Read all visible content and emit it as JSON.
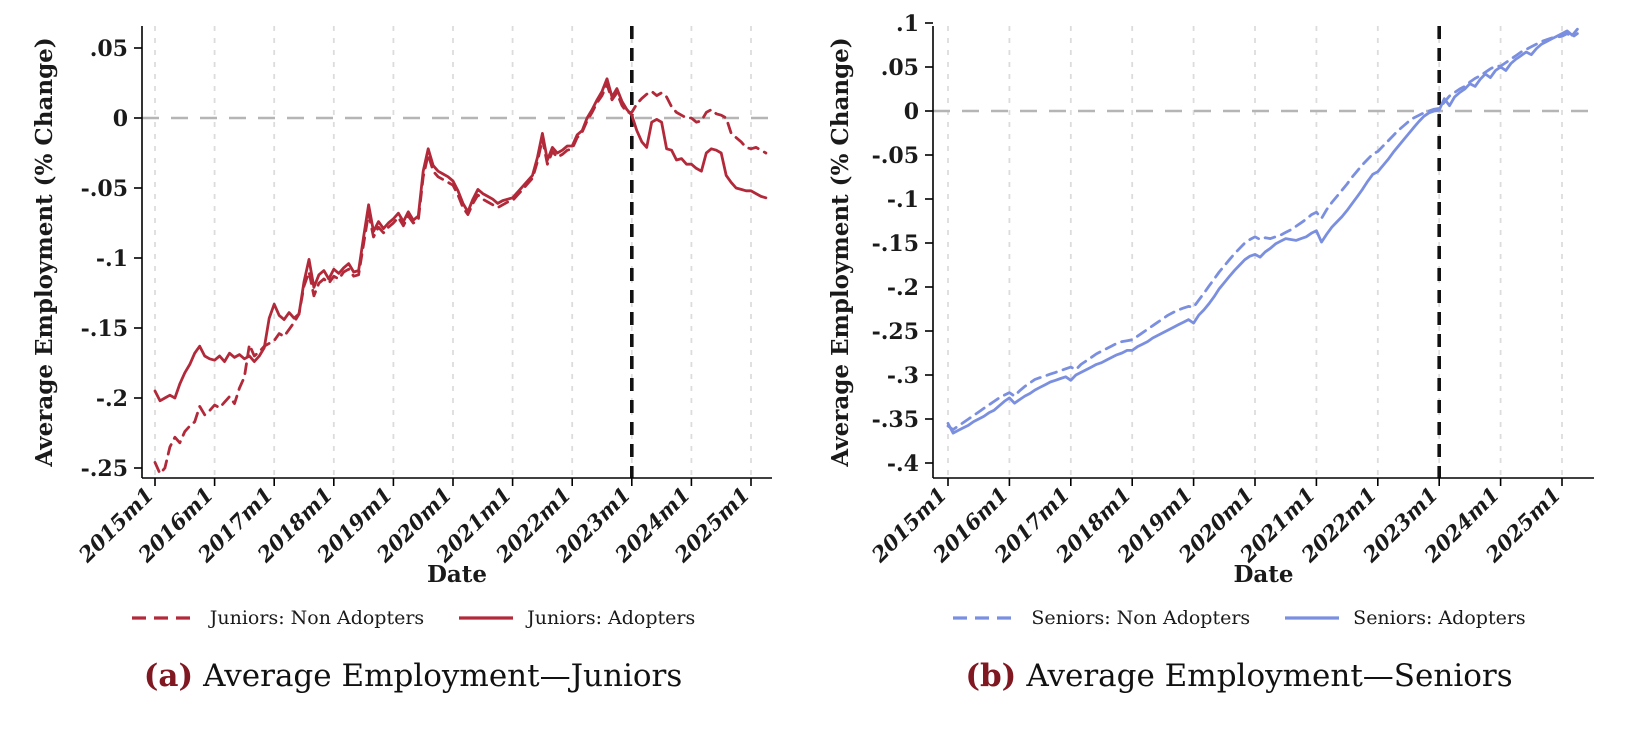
{
  "caption_label_color": "#801822",
  "captions": [
    {
      "label": "(a)",
      "text": "Average Employment—Juniors"
    },
    {
      "label": "(b)",
      "text": "Average Employment—Seniors"
    }
  ],
  "chart_data": [
    {
      "type": "line",
      "title": "",
      "xlabel": "Date",
      "ylabel": "Average Employment (% Change)",
      "accent": "#b2293a",
      "grid": "vertical-dashed",
      "zero_line": true,
      "event_line_x": "2023m1",
      "x_start": "2015m1",
      "freq": "monthly",
      "xtick_labels": [
        "2015m1",
        "2016m1",
        "2017m1",
        "2018m1",
        "2019m1",
        "2020m1",
        "2021m1",
        "2022m1",
        "2023m1",
        "2024m1",
        "2025m1"
      ],
      "ytick_values": [
        0.05,
        0,
        -0.05,
        -0.1,
        -0.15,
        -0.2,
        -0.25
      ],
      "ytick_labels": [
        ".05",
        "0",
        "-.05",
        "-.1",
        "-.15",
        "-.2",
        "-.25"
      ],
      "ylim": [
        -0.27,
        0.065
      ],
      "legend_position": "below",
      "series": [
        {
          "name": "Juniors: Non Adopters",
          "style": "dashed",
          "values": [
            -0.246,
            -0.254,
            -0.25,
            -0.235,
            -0.228,
            -0.232,
            -0.224,
            -0.22,
            -0.217,
            -0.206,
            -0.212,
            -0.209,
            -0.205,
            -0.207,
            -0.203,
            -0.199,
            -0.204,
            -0.193,
            -0.185,
            -0.162,
            -0.17,
            -0.167,
            -0.163,
            -0.161,
            -0.159,
            -0.154,
            -0.156,
            -0.151,
            -0.146,
            -0.14,
            -0.12,
            -0.11,
            -0.127,
            -0.118,
            -0.115,
            -0.118,
            -0.113,
            -0.115,
            -0.11,
            -0.108,
            -0.113,
            -0.112,
            -0.09,
            -0.068,
            -0.085,
            -0.078,
            -0.082,
            -0.078,
            -0.075,
            -0.071,
            -0.077,
            -0.07,
            -0.075,
            -0.073,
            -0.042,
            -0.026,
            -0.038,
            -0.042,
            -0.044,
            -0.046,
            -0.048,
            -0.055,
            -0.064,
            -0.069,
            -0.061,
            -0.055,
            -0.058,
            -0.06,
            -0.062,
            -0.064,
            -0.062,
            -0.06,
            -0.059,
            -0.055,
            -0.051,
            -0.047,
            -0.043,
            -0.031,
            -0.015,
            -0.033,
            -0.024,
            -0.028,
            -0.026,
            -0.023,
            -0.022,
            -0.014,
            -0.01,
            -0.002,
            0.004,
            0.011,
            0.016,
            0.024,
            0.013,
            0.018,
            0.009,
            0.004,
            0.004,
            0.01,
            0.014,
            0.017,
            0.019,
            0.016,
            0.018,
            0.015,
            0.008,
            0.004,
            0.002,
            0.0,
            0.0,
            -0.003,
            -0.002,
            0.004,
            0.006,
            0.003,
            0.002,
            0.0,
            -0.011,
            -0.014,
            -0.017,
            -0.021,
            -0.022,
            -0.021,
            -0.023,
            -0.025
          ]
        },
        {
          "name": "Juniors: Adopters",
          "style": "solid",
          "values": [
            -0.195,
            -0.202,
            -0.2,
            -0.198,
            -0.2,
            -0.19,
            -0.182,
            -0.176,
            -0.168,
            -0.163,
            -0.17,
            -0.172,
            -0.173,
            -0.17,
            -0.174,
            -0.168,
            -0.171,
            -0.169,
            -0.172,
            -0.17,
            -0.174,
            -0.17,
            -0.164,
            -0.143,
            -0.133,
            -0.141,
            -0.144,
            -0.139,
            -0.143,
            -0.14,
            -0.117,
            -0.101,
            -0.121,
            -0.112,
            -0.109,
            -0.115,
            -0.108,
            -0.111,
            -0.107,
            -0.104,
            -0.11,
            -0.109,
            -0.085,
            -0.062,
            -0.081,
            -0.074,
            -0.079,
            -0.075,
            -0.072,
            -0.068,
            -0.074,
            -0.067,
            -0.073,
            -0.07,
            -0.038,
            -0.022,
            -0.034,
            -0.038,
            -0.04,
            -0.042,
            -0.045,
            -0.052,
            -0.061,
            -0.067,
            -0.058,
            -0.051,
            -0.054,
            -0.056,
            -0.058,
            -0.061,
            -0.059,
            -0.058,
            -0.057,
            -0.053,
            -0.049,
            -0.045,
            -0.041,
            -0.028,
            -0.011,
            -0.03,
            -0.021,
            -0.025,
            -0.023,
            -0.02,
            -0.02,
            -0.012,
            -0.009,
            0.0,
            0.006,
            0.013,
            0.019,
            0.028,
            0.015,
            0.021,
            0.012,
            0.006,
            0.002,
            -0.009,
            -0.017,
            -0.021,
            -0.003,
            -0.001,
            -0.003,
            -0.022,
            -0.023,
            -0.03,
            -0.029,
            -0.033,
            -0.033,
            -0.036,
            -0.038,
            -0.025,
            -0.022,
            -0.023,
            -0.025,
            -0.041,
            -0.046,
            -0.05,
            -0.051,
            -0.052,
            -0.052,
            -0.054,
            -0.056,
            -0.057
          ]
        }
      ]
    },
    {
      "type": "line",
      "title": "",
      "xlabel": "Date",
      "ylabel": "Average Employment (% Change)",
      "accent": "#7b8fe0",
      "grid": "vertical-dashed",
      "zero_line": true,
      "event_line_x": "2023m1",
      "x_start": "2015m1",
      "freq": "monthly",
      "xtick_labels": [
        "2015m1",
        "2016m1",
        "2017m1",
        "2018m1",
        "2019m1",
        "2020m1",
        "2021m1",
        "2022m1",
        "2023m1",
        "2024m1",
        "2025m1"
      ],
      "ytick_values": [
        0.1,
        0.05,
        0,
        -0.05,
        -0.1,
        -0.15,
        -0.2,
        -0.25,
        -0.3,
        -0.35,
        -0.4
      ],
      "ytick_labels": [
        ".1",
        ".05",
        "0",
        "-.05",
        "-.1",
        "-.15",
        "-.2",
        "-.25",
        "-.3",
        "-.35",
        "-.4"
      ],
      "ylim": [
        -0.41,
        0.1
      ],
      "legend_position": "below",
      "series": [
        {
          "name": "Seniors: Non Adopters",
          "style": "dashed",
          "values": [
            -0.358,
            -0.362,
            -0.358,
            -0.354,
            -0.35,
            -0.346,
            -0.342,
            -0.338,
            -0.334,
            -0.33,
            -0.326,
            -0.323,
            -0.32,
            -0.324,
            -0.318,
            -0.313,
            -0.309,
            -0.305,
            -0.303,
            -0.301,
            -0.299,
            -0.297,
            -0.295,
            -0.293,
            -0.291,
            -0.294,
            -0.288,
            -0.284,
            -0.28,
            -0.276,
            -0.273,
            -0.27,
            -0.267,
            -0.264,
            -0.262,
            -0.261,
            -0.26,
            -0.256,
            -0.252,
            -0.248,
            -0.244,
            -0.24,
            -0.236,
            -0.232,
            -0.229,
            -0.226,
            -0.224,
            -0.222,
            -0.223,
            -0.215,
            -0.207,
            -0.199,
            -0.191,
            -0.183,
            -0.176,
            -0.169,
            -0.162,
            -0.156,
            -0.15,
            -0.146,
            -0.143,
            -0.146,
            -0.144,
            -0.145,
            -0.143,
            -0.141,
            -0.138,
            -0.135,
            -0.131,
            -0.127,
            -0.123,
            -0.118,
            -0.115,
            -0.122,
            -0.112,
            -0.104,
            -0.097,
            -0.09,
            -0.083,
            -0.075,
            -0.068,
            -0.061,
            -0.055,
            -0.049,
            -0.046,
            -0.04,
            -0.034,
            -0.028,
            -0.022,
            -0.017,
            -0.012,
            -0.008,
            -0.005,
            -0.002,
            0.0,
            0.002,
            0.003,
            0.01,
            0.017,
            0.021,
            0.025,
            0.028,
            0.033,
            0.037,
            0.04,
            0.044,
            0.048,
            0.051,
            0.051,
            0.055,
            0.059,
            0.063,
            0.067,
            0.07,
            0.073,
            0.076,
            0.079,
            0.081,
            0.083,
            0.084,
            0.085,
            0.088,
            0.084,
            0.088
          ]
        },
        {
          "name": "Seniors: Adopters",
          "style": "solid",
          "values": [
            -0.355,
            -0.366,
            -0.363,
            -0.36,
            -0.357,
            -0.353,
            -0.35,
            -0.347,
            -0.343,
            -0.34,
            -0.335,
            -0.33,
            -0.326,
            -0.332,
            -0.328,
            -0.324,
            -0.321,
            -0.317,
            -0.314,
            -0.311,
            -0.308,
            -0.306,
            -0.304,
            -0.302,
            -0.306,
            -0.3,
            -0.297,
            -0.294,
            -0.291,
            -0.288,
            -0.286,
            -0.283,
            -0.28,
            -0.277,
            -0.275,
            -0.272,
            -0.272,
            -0.268,
            -0.265,
            -0.262,
            -0.258,
            -0.255,
            -0.252,
            -0.249,
            -0.246,
            -0.243,
            -0.24,
            -0.237,
            -0.241,
            -0.232,
            -0.226,
            -0.219,
            -0.211,
            -0.202,
            -0.195,
            -0.188,
            -0.181,
            -0.175,
            -0.169,
            -0.165,
            -0.163,
            -0.166,
            -0.16,
            -0.156,
            -0.151,
            -0.148,
            -0.145,
            -0.146,
            -0.147,
            -0.145,
            -0.143,
            -0.139,
            -0.136,
            -0.149,
            -0.14,
            -0.132,
            -0.126,
            -0.12,
            -0.113,
            -0.105,
            -0.097,
            -0.089,
            -0.08,
            -0.072,
            -0.069,
            -0.062,
            -0.055,
            -0.047,
            -0.04,
            -0.033,
            -0.026,
            -0.019,
            -0.012,
            -0.006,
            -0.002,
            0.0,
            0.001,
            0.014,
            0.006,
            0.016,
            0.021,
            0.025,
            0.031,
            0.028,
            0.036,
            0.042,
            0.038,
            0.046,
            0.05,
            0.046,
            0.054,
            0.059,
            0.063,
            0.067,
            0.064,
            0.071,
            0.076,
            0.079,
            0.082,
            0.085,
            0.088,
            0.091,
            0.086,
            0.093
          ]
        }
      ]
    }
  ]
}
